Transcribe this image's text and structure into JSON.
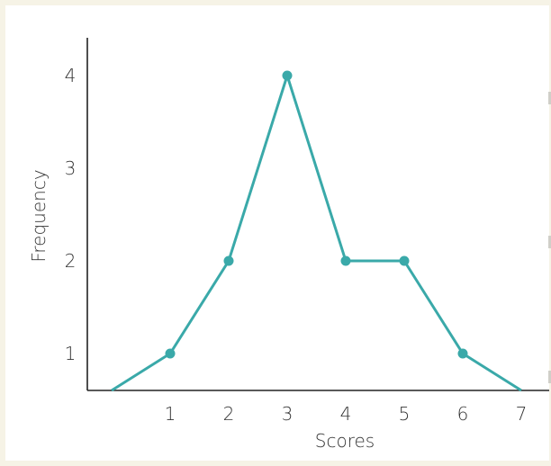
{
  "chart_data": {
    "type": "line",
    "title": "",
    "xlabel": "Scores",
    "ylabel": "Frequency",
    "x_ticks": [
      "1",
      "2",
      "3",
      "4",
      "5",
      "6",
      "7"
    ],
    "y_ticks": [
      "1",
      "2",
      "3",
      "4"
    ],
    "points": [
      {
        "x": 0,
        "y": 0,
        "marker": false
      },
      {
        "x": 1,
        "y": 1,
        "marker": true
      },
      {
        "x": 2,
        "y": 2,
        "marker": true
      },
      {
        "x": 3,
        "y": 4,
        "marker": true
      },
      {
        "x": 4,
        "y": 2,
        "marker": true
      },
      {
        "x": 5,
        "y": 2,
        "marker": true
      },
      {
        "x": 6,
        "y": 1,
        "marker": true
      },
      {
        "x": 7,
        "y": 0,
        "marker": false
      }
    ],
    "ylim": [
      0.6,
      4.4
    ],
    "grid": false,
    "line_color": "#3aa9a9",
    "axis_color": "#222222"
  }
}
